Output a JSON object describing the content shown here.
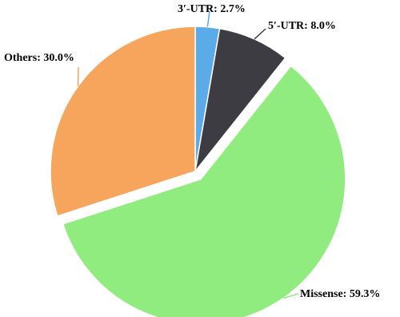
{
  "chart_data": {
    "type": "pie",
    "values": [
      2.7,
      8.0,
      59.3,
      30.0
    ],
    "value_labels": [
      "3′-UTR: 2.7%",
      "5′-UTR: 8.0%",
      "Missense: 59.3%",
      "Others: 30.0%"
    ],
    "colors": [
      "#5aabe8",
      "#3c3c42",
      "#90ec7e",
      "#f7a45c"
    ],
    "exploded": [
      false,
      false,
      true,
      false
    ],
    "start_angle": 90,
    "direction": "clockwise"
  }
}
